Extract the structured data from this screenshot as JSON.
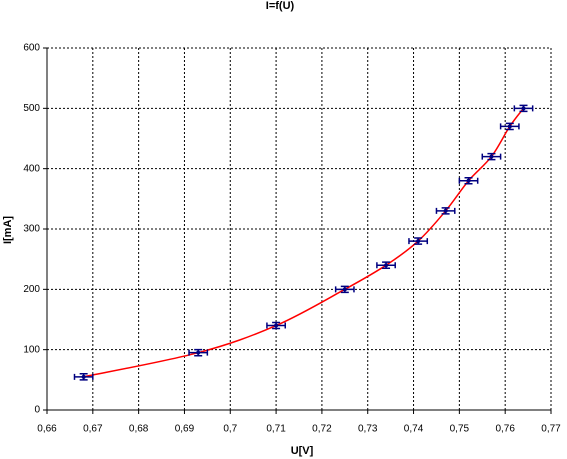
{
  "chart_data": {
    "type": "scatter",
    "title": "I=f(U)",
    "x_label": "U[V]",
    "y_label": "I[mA]",
    "x": [
      0.668,
      0.693,
      0.71,
      0.725,
      0.734,
      0.741,
      0.747,
      0.752,
      0.757,
      0.761,
      0.764
    ],
    "values": [
      55,
      95,
      140,
      200,
      240,
      280,
      330,
      380,
      420,
      470,
      500
    ],
    "x_err": [
      0.002,
      0.002,
      0.002,
      0.002,
      0.002,
      0.002,
      0.002,
      0.002,
      0.002,
      0.002,
      0.002
    ],
    "y_err": [
      5,
      5,
      5,
      5,
      5,
      5,
      5,
      5,
      5,
      5,
      5
    ],
    "marker_color": "#000080",
    "line_color": "#ff0000",
    "xlim": [
      0.66,
      0.77
    ],
    "xticks": [
      {
        "value": 0.66,
        "label": "0,66"
      },
      {
        "value": 0.67,
        "label": "0,67"
      },
      {
        "value": 0.68,
        "label": "0,68"
      },
      {
        "value": 0.69,
        "label": "0,69"
      },
      {
        "value": 0.7,
        "label": "0,7"
      },
      {
        "value": 0.71,
        "label": "0,71"
      },
      {
        "value": 0.72,
        "label": "0,72"
      },
      {
        "value": 0.73,
        "label": "0,73"
      },
      {
        "value": 0.74,
        "label": "0,74"
      },
      {
        "value": 0.75,
        "label": "0,75"
      },
      {
        "value": 0.76,
        "label": "0,76"
      },
      {
        "value": 0.77,
        "label": "0,77"
      }
    ],
    "ylim": [
      0,
      600
    ],
    "yticks": [
      0,
      100,
      200,
      300,
      400,
      500,
      600
    ],
    "grid": true
  }
}
